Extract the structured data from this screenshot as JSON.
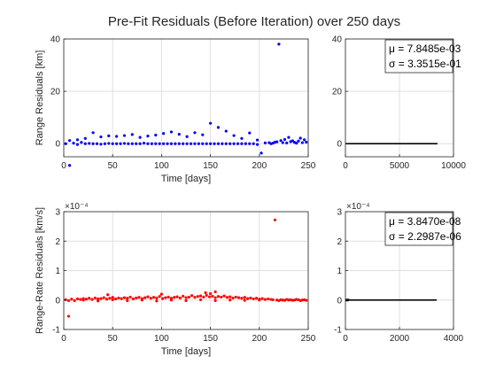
{
  "figure": {
    "title": "Pre-Fit Residuals (Before Iteration) over 250 days"
  },
  "chart_data": [
    {
      "id": "range_scatter",
      "type": "scatter",
      "xlabel": "Time [days]",
      "ylabel": "Range Residuals [km]",
      "xlim": [
        0,
        250
      ],
      "ylim": [
        -5,
        40
      ],
      "xticks": [
        0,
        50,
        100,
        150,
        200,
        250
      ],
      "yticks": [
        0,
        20,
        40
      ],
      "exponent": "",
      "grid": true,
      "color": "#0000ff",
      "series": [
        {
          "name": "range residuals",
          "x": [
            2,
            6,
            10,
            14,
            18,
            22,
            26,
            30,
            34,
            38,
            42,
            46,
            50,
            54,
            58,
            62,
            66,
            70,
            74,
            78,
            82,
            86,
            90,
            94,
            98,
            102,
            106,
            110,
            114,
            118,
            122,
            126,
            130,
            134,
            138,
            142,
            146,
            150,
            154,
            158,
            162,
            166,
            170,
            174,
            178,
            182,
            186,
            190,
            194,
            198,
            202,
            206,
            210,
            212,
            214,
            216,
            218,
            220,
            222,
            224,
            226,
            228,
            230,
            232,
            234,
            236,
            238,
            240,
            242,
            244,
            246,
            248,
            6,
            14,
            22,
            30,
            38,
            46,
            54,
            62,
            70,
            78,
            86,
            94,
            102,
            110,
            118,
            126,
            134,
            142,
            150,
            158,
            166,
            174,
            182,
            190,
            198
          ],
          "y": [
            0.0,
            -8.3,
            0.2,
            -0.3,
            0.5,
            0.0,
            0.1,
            0.0,
            0.0,
            -0.2,
            0.0,
            0.1,
            0.0,
            0.0,
            0.0,
            0.1,
            0.0,
            0.0,
            0.0,
            0.0,
            0.2,
            0.0,
            0.0,
            0.0,
            0.0,
            0.0,
            0.0,
            0.0,
            0.0,
            0.0,
            0.0,
            0.0,
            0.0,
            0.0,
            0.0,
            0.0,
            0.0,
            0.0,
            0.0,
            0.0,
            0.0,
            0.0,
            0.0,
            0.0,
            0.0,
            0.0,
            0.0,
            0.0,
            0.0,
            -0.3,
            -3.6,
            0.3,
            0.4,
            0.0,
            0.2,
            0.6,
            0.7,
            38.0,
            1.2,
            0.4,
            1.6,
            0.3,
            2.4,
            0.8,
            1.1,
            0.5,
            0.2,
            1.0,
            2.1,
            0.4,
            1.5,
            0.6,
            1.2,
            1.5,
            2.0,
            4.2,
            2.6,
            3.0,
            2.8,
            3.1,
            3.5,
            2.4,
            2.9,
            3.3,
            3.9,
            4.5,
            3.6,
            2.7,
            4.2,
            3.4,
            7.8,
            6.2,
            4.8,
            3.1,
            2.0,
            4.1,
            1.4
          ]
        }
      ]
    },
    {
      "id": "range_hist",
      "type": "bar",
      "orientation": "horizontal",
      "xlim": [
        0,
        10000
      ],
      "ylim": [
        -5,
        40
      ],
      "xticks": [
        0,
        5000,
        10000
      ],
      "yticks": [
        0,
        20,
        40
      ],
      "exponent": "",
      "grid": true,
      "bins": [
        {
          "y": 0,
          "count": 8520
        }
      ],
      "legend": {
        "position": "top-right",
        "mu": "μ = 7.8485e-03",
        "sigma": "σ = 3.3515e-01"
      }
    },
    {
      "id": "rate_scatter",
      "type": "scatter",
      "xlabel": "Time [days]",
      "ylabel": "Range-Rate Residuals [km/s]",
      "xlim": [
        0,
        250
      ],
      "ylim": [
        -1,
        3
      ],
      "xticks": [
        0,
        50,
        100,
        150,
        200,
        250
      ],
      "yticks": [
        -1,
        0,
        1,
        2,
        3
      ],
      "exponent": "×10⁻⁴",
      "grid": true,
      "color": "#ff0000",
      "series": [
        {
          "name": "range-rate residuals (×10⁻⁴ km/s)",
          "x": [
            2,
            5,
            8,
            11,
            14,
            17,
            20,
            23,
            26,
            29,
            32,
            35,
            38,
            41,
            44,
            47,
            50,
            53,
            56,
            59,
            62,
            65,
            68,
            71,
            74,
            77,
            80,
            83,
            86,
            89,
            92,
            95,
            98,
            101,
            104,
            107,
            110,
            113,
            116,
            119,
            122,
            125,
            128,
            131,
            134,
            137,
            140,
            143,
            146,
            149,
            152,
            155,
            158,
            161,
            164,
            167,
            170,
            173,
            176,
            179,
            182,
            185,
            188,
            191,
            194,
            197,
            200,
            203,
            206,
            209,
            212,
            214,
            216,
            218,
            220,
            222,
            224,
            226,
            228,
            230,
            232,
            234,
            236,
            238,
            240,
            242,
            244,
            246,
            248,
            5,
            20,
            35,
            50,
            65,
            80,
            95,
            110,
            125,
            140,
            155,
            170,
            185,
            200,
            45,
            100,
            145,
            150,
            155
          ],
          "y": [
            0.01,
            -0.55,
            0.03,
            -0.02,
            0.04,
            0.02,
            0.05,
            0.03,
            0.06,
            0.02,
            0.07,
            0.04,
            0.05,
            0.08,
            0.03,
            0.06,
            0.09,
            0.04,
            0.07,
            0.05,
            0.08,
            0.06,
            0.1,
            0.04,
            0.07,
            0.09,
            0.05,
            0.08,
            0.11,
            0.06,
            0.09,
            0.07,
            0.12,
            0.05,
            0.08,
            0.1,
            0.06,
            0.09,
            0.11,
            0.07,
            0.13,
            0.08,
            0.1,
            0.15,
            0.09,
            0.12,
            0.14,
            0.1,
            0.16,
            0.11,
            0.13,
            0.08,
            0.12,
            0.1,
            0.14,
            0.09,
            0.11,
            0.07,
            0.1,
            0.08,
            0.06,
            0.09,
            0.05,
            0.07,
            0.04,
            0.06,
            0.03,
            0.05,
            0.02,
            0.04,
            0.02,
            0.01,
            2.72,
            0.0,
            -0.02,
            0.01,
            0.0,
            -0.01,
            0.02,
            0.0,
            0.01,
            -0.01,
            0.0,
            0.02,
            0.01,
            -0.02,
            0.0,
            0.01,
            -0.01,
            -0.02,
            0.0,
            -0.03,
            0.01,
            -0.02,
            0.0,
            -0.03,
            0.0,
            -0.02,
            0.01,
            -0.02,
            0.0,
            -0.01,
            0.0,
            0.18,
            0.2,
            0.25,
            0.22,
            0.28
          ]
        }
      ]
    },
    {
      "id": "rate_hist",
      "type": "bar",
      "orientation": "horizontal",
      "xlim": [
        0,
        4000
      ],
      "ylim": [
        -1,
        3
      ],
      "xticks": [
        0,
        2000,
        4000
      ],
      "yticks": [
        -1,
        0,
        1,
        2,
        3
      ],
      "exponent": "×10⁻⁴",
      "grid": true,
      "bins": [
        {
          "y": 0,
          "count": 3380
        },
        {
          "y": 0.02,
          "count": 140
        },
        {
          "y": -0.02,
          "count": 120
        }
      ],
      "legend": {
        "position": "top-right",
        "mu": "μ = 3.8470e-08",
        "sigma": "σ = 2.2987e-06"
      }
    }
  ]
}
